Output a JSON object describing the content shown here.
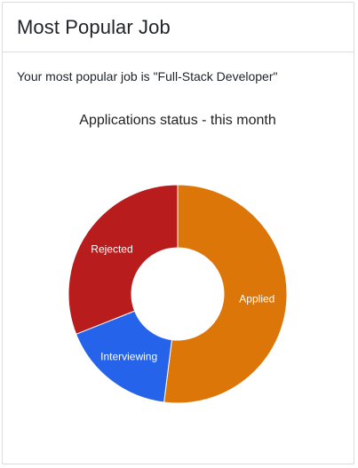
{
  "card": {
    "title": "Most Popular Job",
    "summary_prefix": "Your most popular job is ",
    "summary_job": "\"Full-Stack Developer\""
  },
  "chart_data": {
    "type": "pie",
    "title": "Applications status - this month",
    "donut": true,
    "legend": "none",
    "categories": [
      "Applied",
      "Interviewing",
      "Rejected"
    ],
    "values": [
      52,
      17,
      31
    ],
    "colors": [
      "#dc7609",
      "#2563eb",
      "#b91c1c"
    ],
    "labels_on_slices": true
  }
}
